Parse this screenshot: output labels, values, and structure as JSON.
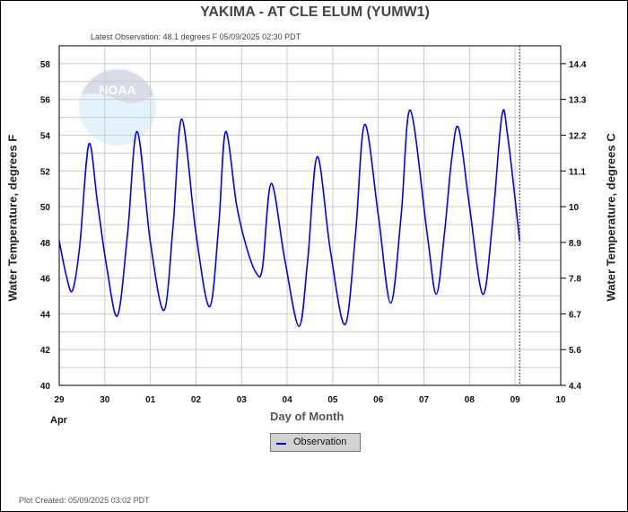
{
  "header": {
    "title": "YAKIMA - AT CLE ELUM  (YUMW1)",
    "latest": "Latest Observation: 48.1 degrees F 05/09/2025 02:30 PDT"
  },
  "footer": {
    "created": "Plot Created: 05/09/2025 03:02 PDT"
  },
  "logo": {
    "text": "NOAA"
  },
  "chart_data": {
    "type": "line",
    "title": "YAKIMA - AT CLE ELUM  (YUMW1)",
    "xlabel": "Day of Month",
    "month_label": "Apr",
    "ylabel": "Water Temperature, degrees F",
    "ylabel_right": "Water Temperature, degrees C",
    "ylim": [
      40,
      59
    ],
    "xlim_days_from_apr29": [
      0,
      11
    ],
    "x_tick_labels": [
      "29",
      "30",
      "01",
      "02",
      "03",
      "04",
      "05",
      "06",
      "07",
      "08",
      "09",
      "10"
    ],
    "y_ticks": [
      40,
      42,
      44,
      46,
      48,
      50,
      52,
      54,
      56,
      58
    ],
    "y_right_ticks": [
      {
        "f": 40,
        "label": "4.4"
      },
      {
        "f": 42,
        "label": "5.6"
      },
      {
        "f": 44,
        "label": "6.7"
      },
      {
        "f": 46,
        "label": "7.8"
      },
      {
        "f": 48,
        "label": "8.9"
      },
      {
        "f": 50,
        "label": "10"
      },
      {
        "f": 52,
        "label": "11.1"
      },
      {
        "f": 54,
        "label": "12.2"
      },
      {
        "f": 56,
        "label": "13.3"
      },
      {
        "f": 58,
        "label": "14.4"
      }
    ],
    "grid": true,
    "legend": {
      "position": "bottom-center",
      "entries": [
        "Observation"
      ]
    },
    "latest_marker_day": 10.1,
    "series": [
      {
        "name": "Observation",
        "color": "#0000ff",
        "x": [
          0,
          0.15,
          0.29,
          0.45,
          0.65,
          0.84,
          1.05,
          1.28,
          1.5,
          1.71,
          2.0,
          2.3,
          2.5,
          2.69,
          3.0,
          3.3,
          3.5,
          3.65,
          3.89,
          4.1,
          4.32,
          4.46,
          4.65,
          4.95,
          5.26,
          5.45,
          5.66,
          5.95,
          6.27,
          6.5,
          6.7,
          7.0,
          7.27,
          7.5,
          7.7,
          8.07,
          8.27,
          8.45,
          8.61,
          8.76,
          9.0,
          9.29,
          9.5,
          9.71,
          9.84,
          10.1
        ],
        "y": [
          48.1,
          46.2,
          45.3,
          47.8,
          53.5,
          50.2,
          46.5,
          43.9,
          48.5,
          54.2,
          48.0,
          44.2,
          49.0,
          54.9,
          48.5,
          44.4,
          49.0,
          54.2,
          50.1,
          47.8,
          46.3,
          46.6,
          51.3,
          47.0,
          43.3,
          47.0,
          52.8,
          47.5,
          43.4,
          48.5,
          54.6,
          49.5,
          44.6,
          49.5,
          55.4,
          48.5,
          45.1,
          48.5,
          52.7,
          54.4,
          50.0,
          45.1,
          49.0,
          55.1,
          53.9,
          48.1
        ]
      }
    ]
  }
}
